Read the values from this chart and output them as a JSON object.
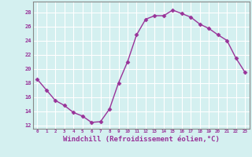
{
  "x": [
    0,
    1,
    2,
    3,
    4,
    5,
    6,
    7,
    8,
    9,
    10,
    11,
    12,
    13,
    14,
    15,
    16,
    17,
    18,
    19,
    20,
    21,
    22,
    23
  ],
  "y": [
    18.5,
    17.0,
    15.5,
    14.8,
    13.8,
    13.3,
    12.4,
    12.5,
    14.3,
    18.0,
    21.0,
    24.8,
    27.0,
    27.5,
    27.5,
    28.3,
    27.8,
    27.3,
    26.3,
    25.7,
    24.8,
    24.0,
    21.5,
    19.5
  ],
  "line_color": "#993399",
  "marker": "D",
  "markersize": 2.5,
  "linewidth": 1.0,
  "xlabel": "Windchill (Refroidissement éolien,°C)",
  "xlabel_fontsize": 6.5,
  "ylabel_ticks": [
    12,
    14,
    16,
    18,
    20,
    22,
    24,
    26,
    28
  ],
  "xlim": [
    -0.5,
    23.5
  ],
  "ylim": [
    11.5,
    29.5
  ],
  "bg_color": "#d4f0f0",
  "grid_color": "#ffffff",
  "tick_color": "#993399",
  "tick_label_color": "#993399",
  "spine_color": "#888888"
}
